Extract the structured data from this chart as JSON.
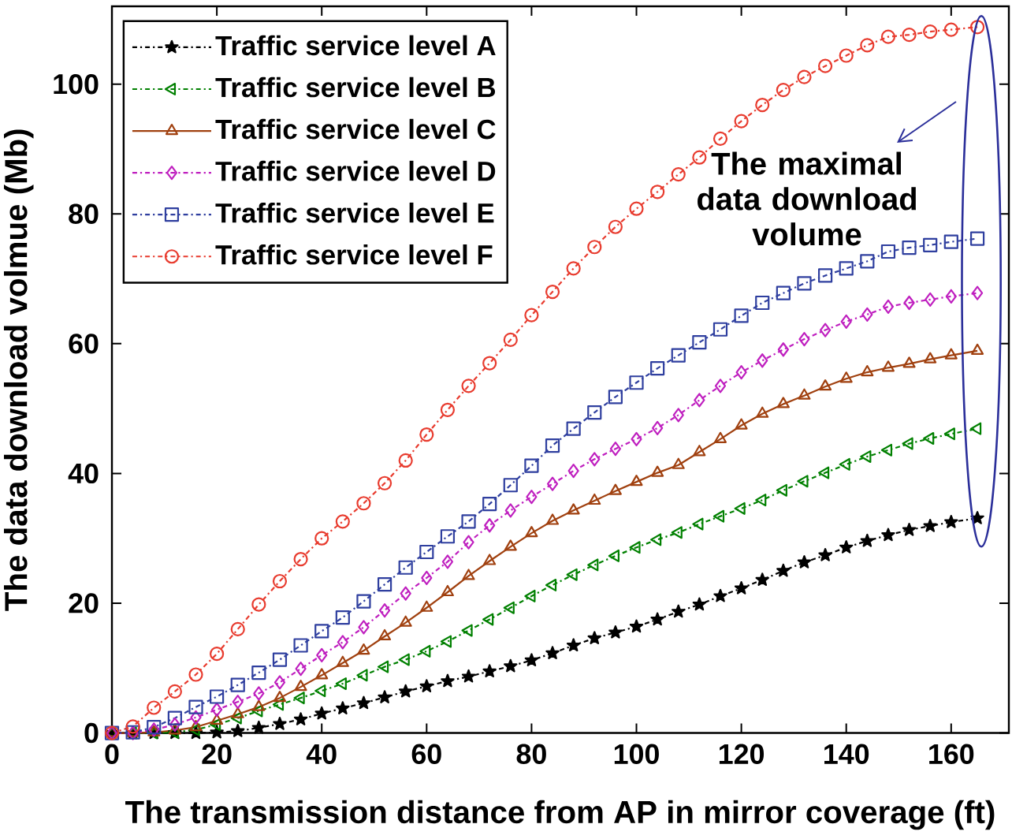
{
  "chart_data": {
    "type": "line",
    "xlabel": "The transmission distance from AP in mirror coverage (ft)",
    "ylabel": "The data download volmue (Mb)",
    "xlim": [
      0,
      171
    ],
    "ylim": [
      0,
      112
    ],
    "xticks": [
      0,
      20,
      40,
      60,
      80,
      100,
      120,
      140,
      160
    ],
    "yticks": [
      0,
      20,
      40,
      60,
      80,
      100
    ],
    "legend": "top left",
    "annotations": [
      "The maximal data download volume"
    ],
    "x": [
      0,
      4,
      8,
      12,
      16,
      20,
      24,
      28,
      32,
      36,
      40,
      44,
      48,
      52,
      56,
      60,
      64,
      68,
      72,
      76,
      80,
      84,
      88,
      92,
      96,
      100,
      104,
      108,
      112,
      116,
      120,
      124,
      128,
      132,
      136,
      140,
      144,
      148,
      152,
      156,
      160,
      165
    ],
    "series": [
      {
        "name": "Traffic service level A",
        "color": "#000000",
        "marker": "star",
        "line_style": "dashdot",
        "values": [
          0,
          0,
          0,
          0,
          0,
          0.1,
          0.3,
          0.8,
          1.4,
          2.1,
          3.0,
          3.8,
          4.6,
          5.5,
          6.4,
          7.2,
          8.0,
          8.7,
          9.5,
          10.3,
          11.2,
          12.3,
          13.5,
          14.6,
          15.5,
          16.4,
          17.5,
          18.7,
          19.8,
          21.1,
          22.3,
          23.6,
          25.0,
          26.3,
          27.4,
          28.6,
          29.6,
          30.5,
          31.3,
          31.9,
          32.5,
          33.1
        ]
      },
      {
        "name": "Traffic service level B",
        "color": "#008000",
        "marker": "triangle-left",
        "line_style": "dashdot",
        "values": [
          0,
          0,
          0,
          0.1,
          0.5,
          1.3,
          2.3,
          3.4,
          4.4,
          5.4,
          6.5,
          7.6,
          8.9,
          10.2,
          11.3,
          12.6,
          14.1,
          15.8,
          17.5,
          19.3,
          21.1,
          22.8,
          24.4,
          25.9,
          27.3,
          28.6,
          29.8,
          30.9,
          32.2,
          33.4,
          34.6,
          35.9,
          37.4,
          38.8,
          40.1,
          41.4,
          42.6,
          43.6,
          44.6,
          45.4,
          46.1,
          46.9
        ]
      },
      {
        "name": "Traffic service level C",
        "color": "#a0400f",
        "marker": "triangle",
        "line_style": "solid",
        "values": [
          0,
          0,
          0.1,
          0.4,
          0.9,
          1.9,
          2.9,
          4.0,
          5.4,
          7.1,
          8.9,
          10.8,
          12.7,
          14.9,
          17.0,
          19.3,
          21.7,
          24.2,
          26.5,
          28.7,
          30.8,
          32.7,
          34.3,
          35.8,
          37.3,
          38.7,
          40.1,
          41.3,
          43.3,
          45.3,
          47.4,
          49.2,
          50.7,
          52.0,
          53.4,
          54.6,
          55.6,
          56.3,
          56.9,
          57.6,
          58.2,
          58.9
        ]
      },
      {
        "name": "Traffic service level D",
        "color": "#bf1fbf",
        "marker": "diamond",
        "line_style": "dashdot",
        "values": [
          0,
          0,
          0.5,
          1.3,
          2.4,
          3.6,
          4.8,
          6.1,
          7.8,
          9.9,
          12.0,
          14.0,
          16.3,
          18.9,
          21.5,
          23.9,
          26.4,
          29.4,
          32.0,
          34.3,
          36.4,
          38.4,
          40.4,
          42.2,
          43.8,
          45.3,
          47.0,
          49.0,
          51.3,
          53.5,
          55.6,
          57.4,
          59.1,
          60.7,
          62.1,
          63.4,
          64.5,
          65.7,
          66.3,
          66.8,
          67.3,
          67.8
        ]
      },
      {
        "name": "Traffic service level E",
        "color": "#2f3f9f",
        "marker": "square",
        "line_style": "dashdot",
        "values": [
          0,
          0.1,
          0.9,
          2.3,
          4.0,
          5.6,
          7.4,
          9.3,
          11.3,
          13.5,
          15.7,
          17.8,
          20.3,
          22.9,
          25.5,
          27.9,
          30.3,
          32.6,
          35.3,
          38.2,
          41.2,
          44.3,
          46.9,
          49.4,
          51.8,
          54.0,
          56.2,
          58.2,
          60.2,
          62.2,
          64.3,
          66.3,
          67.8,
          69.3,
          70.5,
          71.6,
          72.7,
          74.2,
          74.8,
          75.2,
          75.7,
          76.2
        ]
      },
      {
        "name": "Traffic service level F",
        "color": "#e83b2e",
        "marker": "circle",
        "line_style": "dashdot",
        "values": [
          0,
          1.0,
          3.9,
          6.4,
          9.0,
          12.2,
          16.0,
          19.8,
          23.4,
          26.8,
          30.0,
          32.6,
          35.4,
          38.5,
          42.0,
          46.0,
          49.8,
          53.5,
          57.0,
          60.6,
          64.4,
          68.0,
          71.6,
          74.9,
          78.0,
          80.8,
          83.4,
          86.1,
          88.7,
          91.6,
          94.3,
          96.8,
          99.1,
          101.1,
          102.8,
          104.4,
          106.0,
          107.3,
          107.6,
          108.1,
          108.4,
          108.8
        ]
      }
    ]
  }
}
